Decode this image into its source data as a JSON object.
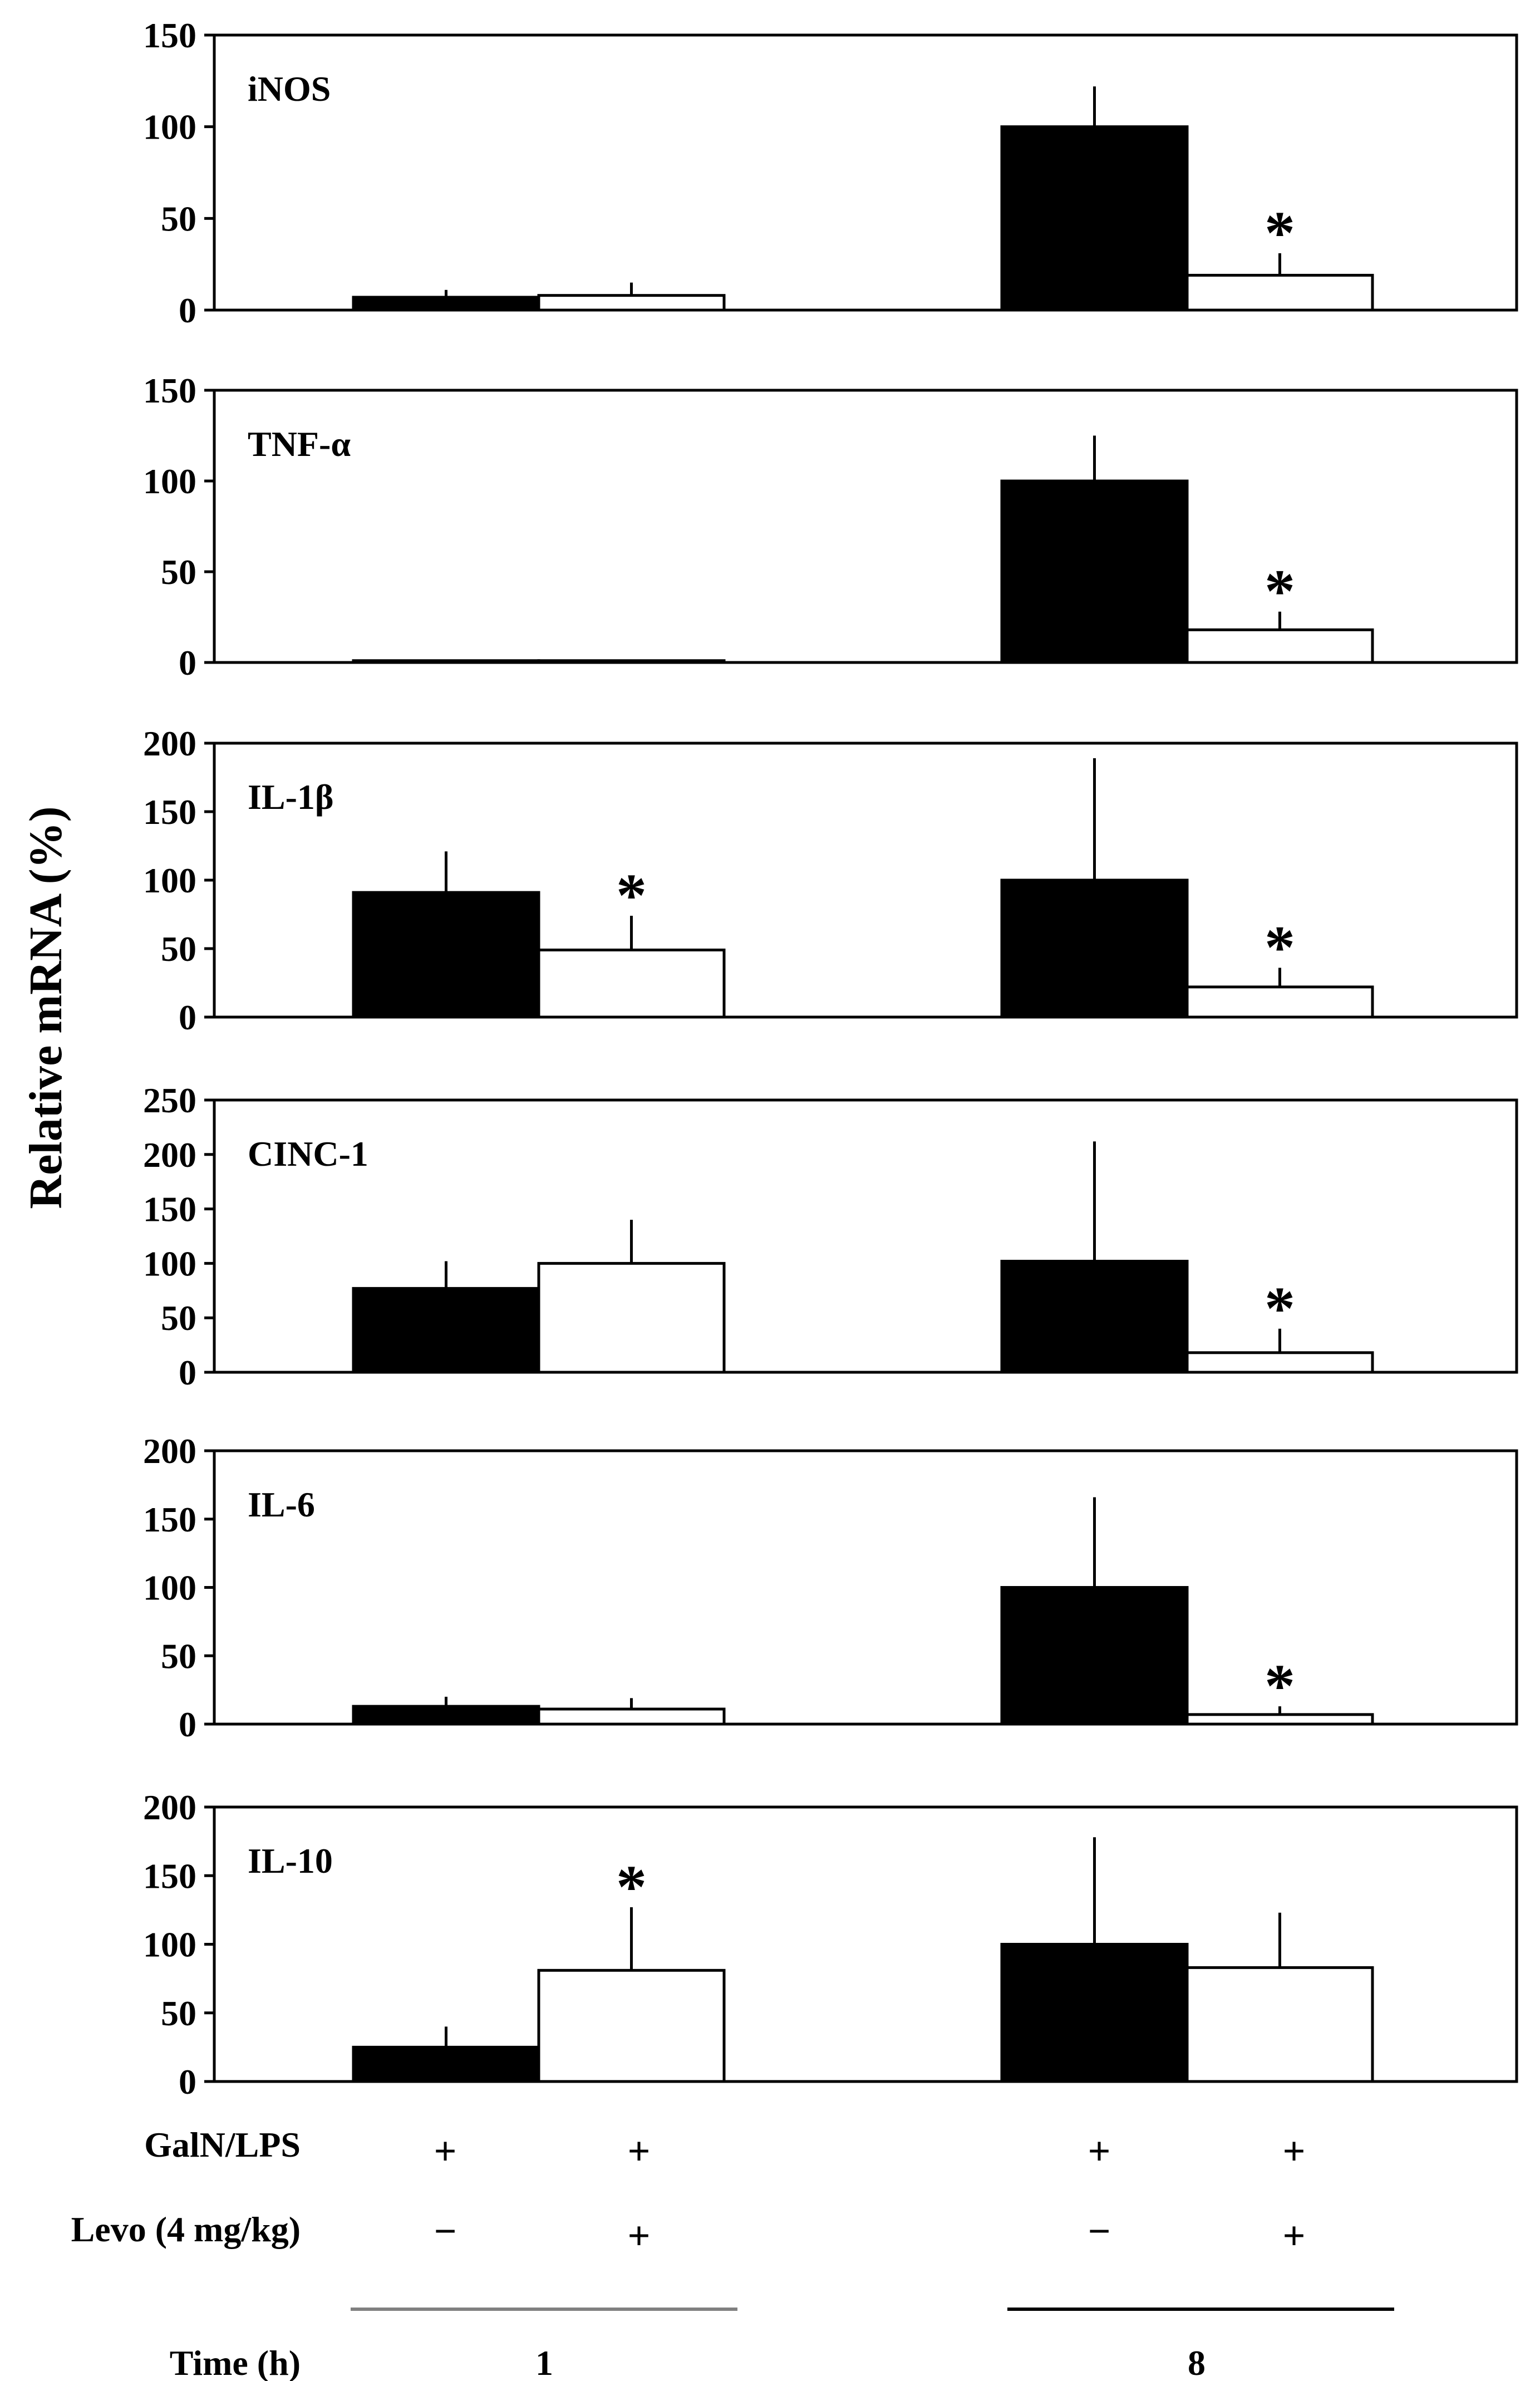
{
  "figure": {
    "ylabel": "Relative mRNA (%)",
    "row_labels": {
      "galn": "GalN/LPS",
      "levo": "Levo (4 mg/kg)",
      "time": "Time (h)"
    },
    "groups": [
      {
        "time": "1",
        "galn": [
          "+",
          "+"
        ],
        "levo": [
          "−",
          "+"
        ]
      },
      {
        "time": "8",
        "galn": [
          "+",
          "+"
        ],
        "levo": [
          "−",
          "+"
        ]
      }
    ],
    "colors": {
      "control_bar": "#000000",
      "levo_bar": "#ffffff",
      "axis": "#000000",
      "underline_1h": "#808080",
      "underline_8h": "#000000"
    }
  },
  "chart_data": [
    {
      "type": "bar",
      "title": "iNOS",
      "ylim": [
        0,
        150
      ],
      "yticks": [
        0,
        50,
        100,
        150
      ],
      "categories": [
        "1 h",
        "8 h"
      ],
      "series": [
        {
          "name": "GalN/LPS",
          "values": [
            7,
            100
          ],
          "errors": [
            4,
            22
          ]
        },
        {
          "name": "GalN/LPS + Levo",
          "values": [
            8,
            19
          ],
          "errors": [
            7,
            12
          ]
        }
      ],
      "annotations": [
        {
          "series": 1,
          "category": 1,
          "text": "*"
        }
      ]
    },
    {
      "type": "bar",
      "title": "TNF-α",
      "ylim": [
        0,
        150
      ],
      "yticks": [
        0,
        50,
        100,
        150
      ],
      "categories": [
        "1 h",
        "8 h"
      ],
      "series": [
        {
          "name": "GalN/LPS",
          "values": [
            1,
            100
          ],
          "errors": [
            0,
            25
          ]
        },
        {
          "name": "GalN/LPS + Levo",
          "values": [
            1,
            18
          ],
          "errors": [
            0,
            10
          ]
        }
      ],
      "annotations": [
        {
          "series": 1,
          "category": 1,
          "text": "*"
        }
      ]
    },
    {
      "type": "bar",
      "title": "IL-1β",
      "ylim": [
        0,
        200
      ],
      "yticks": [
        0,
        50,
        100,
        150,
        200
      ],
      "categories": [
        "1 h",
        "8 h"
      ],
      "series": [
        {
          "name": "GalN/LPS",
          "values": [
            91,
            100
          ],
          "errors": [
            30,
            89
          ]
        },
        {
          "name": "GalN/LPS + Levo",
          "values": [
            49,
            22
          ],
          "errors": [
            25,
            14
          ]
        }
      ],
      "annotations": [
        {
          "series": 1,
          "category": 0,
          "text": "*"
        },
        {
          "series": 1,
          "category": 1,
          "text": "*"
        }
      ]
    },
    {
      "type": "bar",
      "title": "CINC-1",
      "ylim": [
        0,
        250
      ],
      "yticks": [
        0,
        50,
        100,
        150,
        200,
        250
      ],
      "categories": [
        "1 h",
        "8 h"
      ],
      "series": [
        {
          "name": "GalN/LPS",
          "values": [
            77,
            102
          ],
          "errors": [
            25,
            110
          ]
        },
        {
          "name": "GalN/LPS + Levo",
          "values": [
            100,
            18
          ],
          "errors": [
            40,
            22
          ]
        }
      ],
      "annotations": [
        {
          "series": 1,
          "category": 1,
          "text": "*"
        }
      ]
    },
    {
      "type": "bar",
      "title": "IL-6",
      "ylim": [
        0,
        200
      ],
      "yticks": [
        0,
        50,
        100,
        150,
        200
      ],
      "categories": [
        "1 h",
        "8 h"
      ],
      "series": [
        {
          "name": "GalN/LPS",
          "values": [
            13,
            100
          ],
          "errors": [
            7,
            66
          ]
        },
        {
          "name": "GalN/LPS + Levo",
          "values": [
            11,
            7
          ],
          "errors": [
            8,
            6
          ]
        }
      ],
      "annotations": [
        {
          "series": 1,
          "category": 1,
          "text": "*"
        }
      ]
    },
    {
      "type": "bar",
      "title": "IL-10",
      "ylim": [
        0,
        200
      ],
      "yticks": [
        0,
        50,
        100,
        150,
        200
      ],
      "categories": [
        "1 h",
        "8 h"
      ],
      "series": [
        {
          "name": "GalN/LPS",
          "values": [
            25,
            100
          ],
          "errors": [
            15,
            78
          ]
        },
        {
          "name": "GalN/LPS + Levo",
          "values": [
            81,
            83
          ],
          "errors": [
            46,
            40
          ]
        }
      ],
      "annotations": [
        {
          "series": 1,
          "category": 0,
          "text": "*"
        }
      ]
    }
  ]
}
